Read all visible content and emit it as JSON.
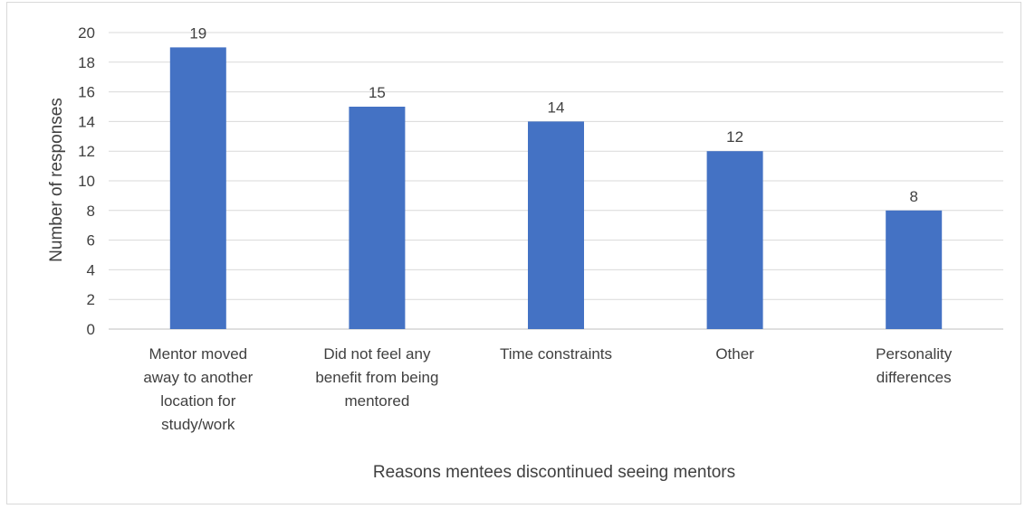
{
  "chart_data": {
    "type": "bar",
    "title": "",
    "xlabel": "Reasons mentees discontinued seeing mentors",
    "ylabel": "Number of responses",
    "ylim": [
      0,
      20
    ],
    "yticks": [
      0,
      2,
      4,
      6,
      8,
      10,
      12,
      14,
      16,
      18,
      20
    ],
    "grid": true,
    "legend": "none",
    "bar_color": "#4472c4",
    "categories": [
      [
        "Mentor moved",
        "away to another",
        "location for",
        "study/work"
      ],
      [
        "Did not feel any",
        "benefit from being",
        "mentored"
      ],
      [
        "Time constraints"
      ],
      [
        "Other"
      ],
      [
        "Personality",
        "differences"
      ]
    ],
    "values": [
      19,
      15,
      14,
      12,
      8
    ],
    "data_labels": [
      "19",
      "15",
      "14",
      "12",
      "8"
    ]
  }
}
